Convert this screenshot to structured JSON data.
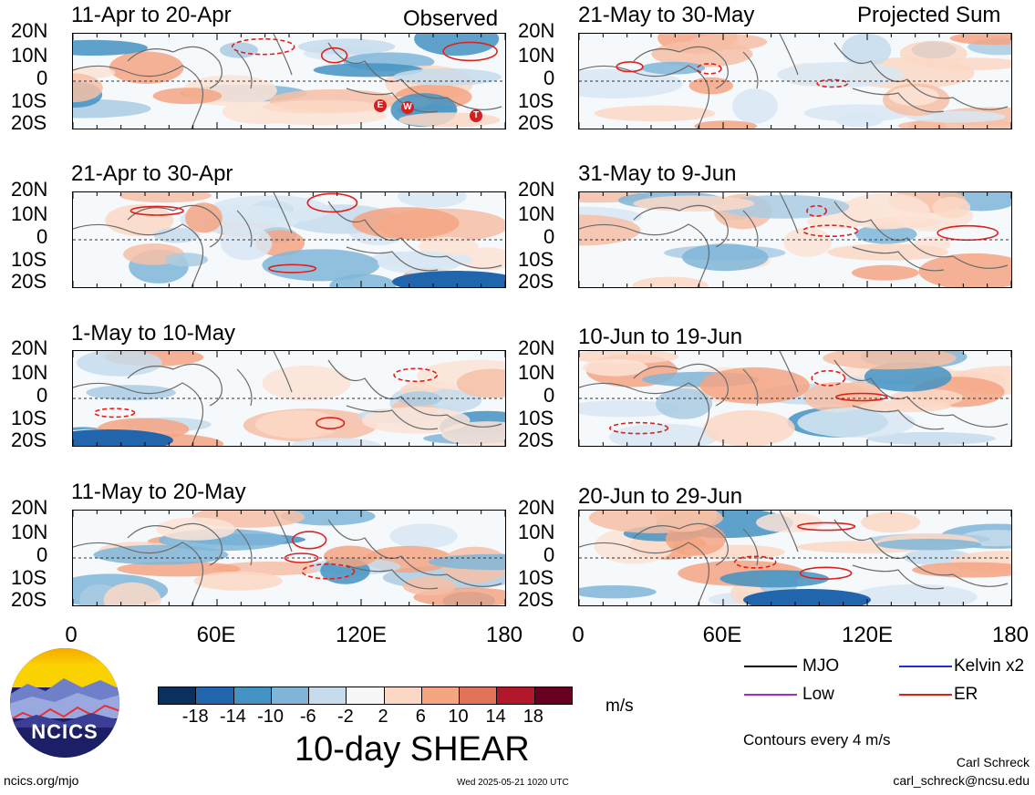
{
  "header": {
    "observed_label": "Observed",
    "projected_label": "Projected Sum"
  },
  "lat_labels": [
    "20N",
    "10N",
    "0",
    "10S",
    "20S"
  ],
  "lon_labels": [
    "0",
    "60E",
    "120E",
    "180"
  ],
  "panels_left": [
    {
      "title": "11-Apr to 20-Apr"
    },
    {
      "title": "21-Apr to 30-Apr"
    },
    {
      "title": "1-May to 10-May"
    },
    {
      "title": "11-May to 20-May"
    }
  ],
  "panels_right": [
    {
      "title": "21-May to 30-May"
    },
    {
      "title": "31-May to 9-Jun"
    },
    {
      "title": "10-Jun to 19-Jun"
    },
    {
      "title": "20-Jun to 29-Jun"
    }
  ],
  "storm_markers": [
    "E",
    "W",
    "T"
  ],
  "colorbar": {
    "colors": [
      "#0b2f5e",
      "#2166ac",
      "#4393c3",
      "#7fb6d8",
      "#c6dcec",
      "#f7f7f7",
      "#fbd8c6",
      "#f4a582",
      "#e0735a",
      "#b2182b",
      "#67001f"
    ],
    "tick_labels": [
      "-18",
      "-14",
      "-10",
      "-6",
      "-2",
      "2",
      "6",
      "10",
      "14",
      "18"
    ],
    "units": "m/s",
    "title": "10-day SHEAR"
  },
  "legend": {
    "items": [
      {
        "label": "MJO",
        "color": "#000000"
      },
      {
        "label": "Kelvin x2",
        "color": "#1f2fd8"
      },
      {
        "label": "Low",
        "color": "#9b30c8"
      },
      {
        "label": "ER",
        "color": "#e0201c"
      }
    ],
    "contour_note": "Contours every 4 m/s"
  },
  "logo": {
    "text": "NCICS"
  },
  "footer": {
    "url": "ncics.org/mjo",
    "timestamp": "Wed 2025-05-21 1020 UTC",
    "author": "Carl Schreck",
    "email": "carl_schreck@ncsu.edu"
  }
}
